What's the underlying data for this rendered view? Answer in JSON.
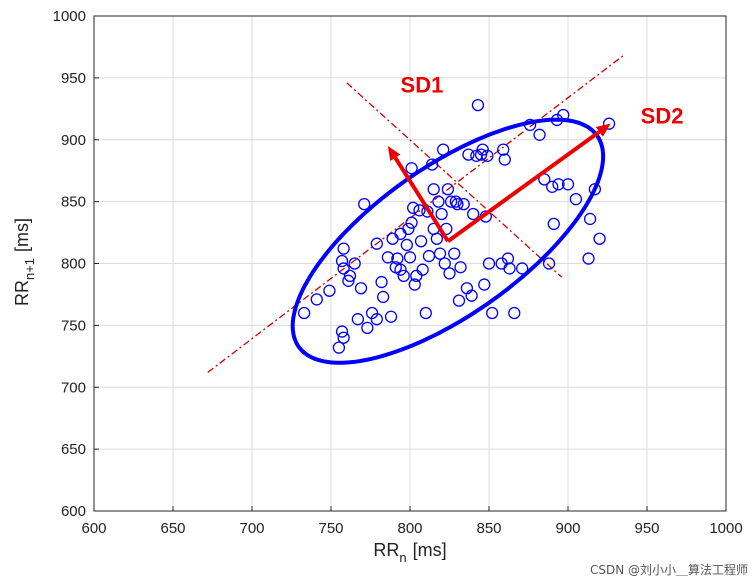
{
  "chart_data": {
    "type": "scatter",
    "title": "",
    "xlabel": {
      "main": "RR",
      "sub": "n",
      "unit": "[ms]"
    },
    "ylabel": {
      "main": "RR",
      "sub": "n+1",
      "unit": "[ms]"
    },
    "xlim": [
      600,
      1000
    ],
    "ylim": [
      600,
      1000
    ],
    "xticks": [
      600,
      650,
      700,
      750,
      800,
      850,
      900,
      950,
      1000
    ],
    "yticks": [
      600,
      650,
      700,
      750,
      800,
      850,
      900,
      950,
      1000
    ],
    "grid": true,
    "colors": {
      "points": "#0000ff",
      "ellipse": "#0000ff",
      "axes_lines": "#d00000",
      "arrows": "#ee0000",
      "labels": "#ee0000",
      "grid": "#dcdcdc"
    },
    "points": [
      [
        733,
        760
      ],
      [
        741,
        771
      ],
      [
        749,
        778
      ],
      [
        755,
        732
      ],
      [
        757,
        745
      ],
      [
        758,
        740
      ],
      [
        757,
        802
      ],
      [
        758,
        812
      ],
      [
        758,
        796
      ],
      [
        761,
        786
      ],
      [
        762,
        790
      ],
      [
        765,
        800
      ],
      [
        767,
        755
      ],
      [
        769,
        780
      ],
      [
        771,
        848
      ],
      [
        773,
        748
      ],
      [
        776,
        760
      ],
      [
        779,
        755
      ],
      [
        779,
        816
      ],
      [
        782,
        785
      ],
      [
        783,
        773
      ],
      [
        786,
        805
      ],
      [
        788,
        757
      ],
      [
        789,
        820
      ],
      [
        791,
        797
      ],
      [
        792,
        804
      ],
      [
        794,
        824
      ],
      [
        794,
        795
      ],
      [
        796,
        790
      ],
      [
        798,
        815
      ],
      [
        799,
        828
      ],
      [
        800,
        805
      ],
      [
        801,
        877
      ],
      [
        801,
        833
      ],
      [
        802,
        845
      ],
      [
        803,
        783
      ],
      [
        804,
        790
      ],
      [
        806,
        843
      ],
      [
        807,
        818
      ],
      [
        808,
        795
      ],
      [
        810,
        760
      ],
      [
        811,
        842
      ],
      [
        812,
        806
      ],
      [
        814,
        880
      ],
      [
        815,
        860
      ],
      [
        815,
        828
      ],
      [
        817,
        820
      ],
      [
        818,
        850
      ],
      [
        819,
        808
      ],
      [
        820,
        840
      ],
      [
        821,
        892
      ],
      [
        822,
        800
      ],
      [
        823,
        828
      ],
      [
        824,
        860
      ],
      [
        825,
        792
      ],
      [
        826,
        850
      ],
      [
        828,
        808
      ],
      [
        829,
        850
      ],
      [
        830,
        848
      ],
      [
        831,
        770
      ],
      [
        832,
        797
      ],
      [
        834,
        848
      ],
      [
        836,
        780
      ],
      [
        837,
        888
      ],
      [
        839,
        774
      ],
      [
        840,
        840
      ],
      [
        842,
        887
      ],
      [
        843,
        928
      ],
      [
        845,
        888
      ],
      [
        846,
        892
      ],
      [
        847,
        783
      ],
      [
        848,
        838
      ],
      [
        849,
        887
      ],
      [
        850,
        800
      ],
      [
        852,
        760
      ],
      [
        858,
        800
      ],
      [
        859,
        892
      ],
      [
        860,
        884
      ],
      [
        862,
        804
      ],
      [
        863,
        796
      ],
      [
        866,
        760
      ],
      [
        871,
        796
      ],
      [
        876,
        912
      ],
      [
        882,
        904
      ],
      [
        885,
        868
      ],
      [
        888,
        800
      ],
      [
        890,
        862
      ],
      [
        891,
        832
      ],
      [
        893,
        916
      ],
      [
        894,
        864
      ],
      [
        897,
        920
      ],
      [
        900,
        864
      ],
      [
        905,
        852
      ],
      [
        913,
        804
      ],
      [
        914,
        836
      ],
      [
        917,
        860
      ],
      [
        920,
        820
      ],
      [
        926,
        913
      ]
    ],
    "ellipse": {
      "center": [
        824,
        818
      ],
      "semi_major": 128,
      "semi_minor": 54,
      "angle_deg": 45
    },
    "axis_lines": [
      {
        "from": [
          672,
          712
        ],
        "to": [
          935,
          968
        ]
      },
      {
        "from": [
          760,
          946
        ],
        "to": [
          896,
          789
        ]
      }
    ],
    "arrows": [
      {
        "name": "SD1",
        "from": [
          824,
          818
        ],
        "to": [
          786,
          895
        ]
      },
      {
        "name": "SD2",
        "from": [
          824,
          818
        ],
        "to": [
          927,
          913
        ]
      }
    ],
    "annotations": [
      {
        "text": "SD1",
        "at": [
          794,
          938
        ]
      },
      {
        "text": "SD2",
        "at": [
          946,
          913
        ]
      }
    ]
  },
  "watermark": "CSDN @刘小小＿算法工程师"
}
